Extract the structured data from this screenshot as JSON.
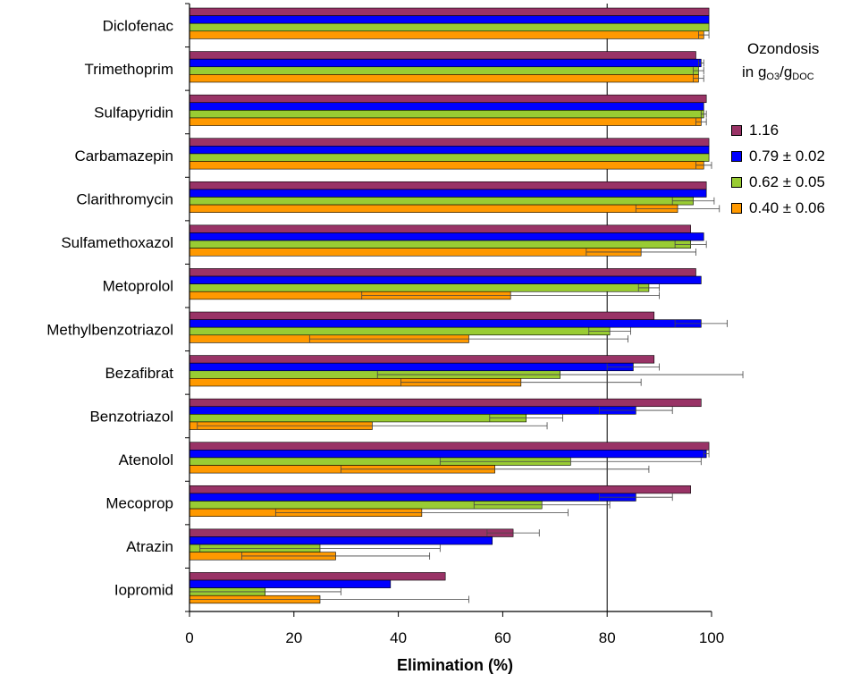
{
  "chart_data": {
    "type": "bar",
    "orientation": "horizontal",
    "title": "",
    "xlabel": "Elimination (%)",
    "ylabel": "",
    "xlim": [
      0,
      100
    ],
    "xticks": [
      "0",
      "20",
      "40",
      "60",
      "80",
      "100"
    ],
    "grid": "vertical gridline at 80",
    "legend_position": "right",
    "legend_title_line1": "Ozondosis",
    "legend_title_line2": "in g",
    "legend_title_sub1": "O3",
    "legend_title_sep": "/g",
    "legend_title_sub2": "DOC",
    "categories": [
      "Diclofenac",
      "Trimethoprim",
      "Sulfapyridin",
      "Carbamazepin",
      "Clarithromycin",
      "Sulfamethoxazol",
      "Metoprolol",
      "Methylbenzotriazol",
      "Bezafibrat",
      "Benzotriazol",
      "Atenolol",
      "Mecoprop",
      "Atrazin",
      "Iopromid"
    ],
    "series": [
      {
        "name": "1.16",
        "color": "#993366",
        "values": [
          99.5,
          97,
          99,
          99.5,
          99,
          96,
          97,
          89,
          89,
          98,
          99.5,
          96,
          62,
          49
        ],
        "errors": [
          0,
          0,
          0,
          0,
          0,
          0,
          0,
          0,
          0,
          0,
          0,
          0,
          5,
          0
        ]
      },
      {
        "name": "0.79 ± 0.02",
        "color": "#0000ff",
        "values": [
          99.5,
          98,
          98.5,
          99.5,
          99,
          98.5,
          98,
          98,
          85,
          85.5,
          99,
          85.5,
          58,
          38.5
        ],
        "errors": [
          0,
          0.5,
          0,
          0,
          0,
          0,
          0,
          5,
          5,
          7,
          0.5,
          7,
          0,
          0
        ]
      },
      {
        "name": "0.62 ± 0.05",
        "color": "#99cc33",
        "values": [
          99.5,
          97.5,
          98.5,
          99.5,
          96.5,
          96,
          88,
          80.5,
          71,
          64.5,
          73,
          67.5,
          25,
          14.5
        ],
        "errors": [
          0,
          1,
          0.5,
          0,
          4,
          3,
          2,
          4,
          35,
          7,
          25,
          13,
          23,
          14.5
        ]
      },
      {
        "name": "0.40 ± 0.06",
        "color": "#ff9900",
        "values": [
          98.5,
          97.5,
          98,
          98.5,
          93.5,
          86.5,
          61.5,
          53.5,
          63.5,
          35,
          58.5,
          44.5,
          28,
          25
        ],
        "errors": [
          1,
          1,
          1,
          1.5,
          8,
          10.5,
          28.5,
          30.5,
          23,
          33.5,
          29.5,
          28,
          18,
          28.5
        ]
      }
    ]
  }
}
